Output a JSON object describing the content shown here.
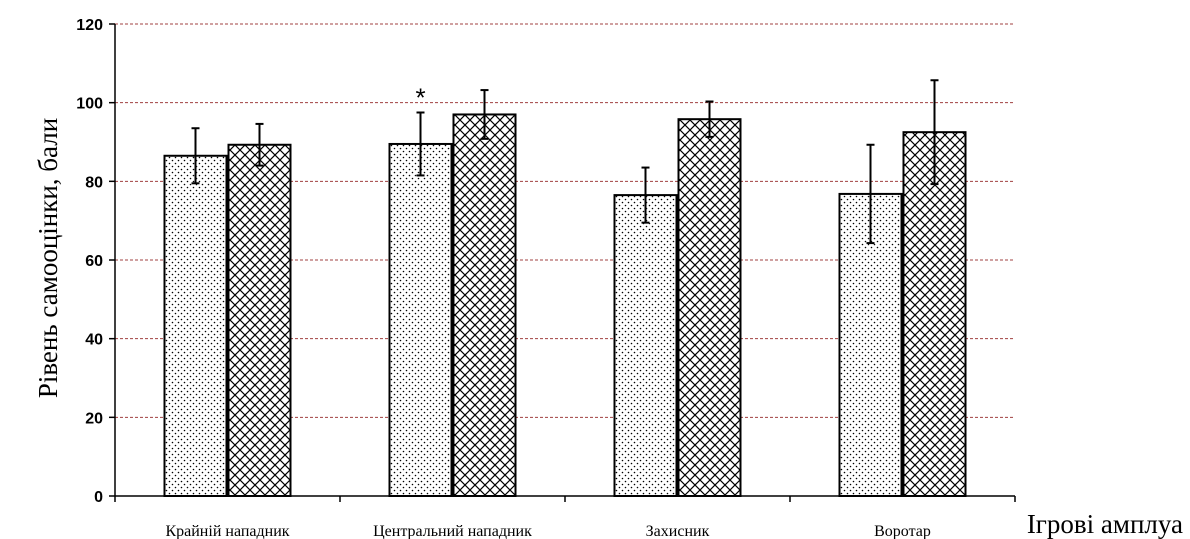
{
  "chart_data": {
    "type": "bar",
    "title": "",
    "xlabel": "Ігрові амплуа",
    "ylabel": "Рівень самооцінки, бали",
    "ylim": [
      0,
      120
    ],
    "yticks": [
      0,
      20,
      40,
      60,
      80,
      100,
      120
    ],
    "grid": "horizontal dashed",
    "legend": "none",
    "categories": [
      "Крайній нападник",
      "Центральний нападник",
      "Захисник",
      "Воротар"
    ],
    "series": [
      {
        "pattern": "dots",
        "values": [
          86.5,
          89.5,
          76.5,
          76.8
        ],
        "errors": [
          7,
          8,
          7,
          12.5
        ]
      },
      {
        "pattern": "crosshatch",
        "values": [
          89.3,
          97.0,
          95.8,
          92.5
        ],
        "errors": [
          5.3,
          6.2,
          4.5,
          13.2
        ]
      }
    ],
    "annotations": [
      {
        "text": "*",
        "category_index": 1,
        "series_index": 0
      }
    ],
    "colors": {
      "bar_stroke": "#000000",
      "bar_fill": "#ffffff",
      "grid": "#a04040"
    }
  }
}
